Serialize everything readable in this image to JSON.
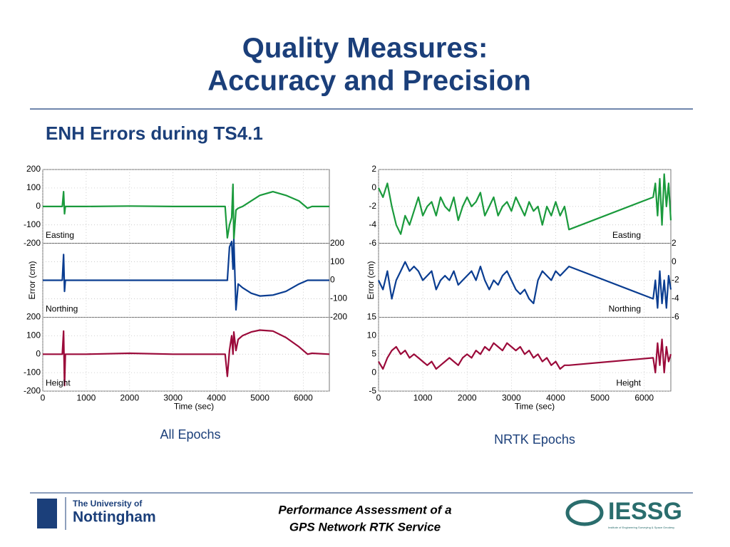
{
  "slide": {
    "title_lines": [
      "Quality Measures:",
      "Accuracy and Precision"
    ],
    "subtitle": "ENH Errors during TS4.1",
    "captions": [
      "All Epochs",
      "NRTK Epochs"
    ],
    "footer_lines": [
      "Performance Assessment of a",
      "GPS Network RTK Service"
    ],
    "logo_left": [
      "The University of",
      "Nottingham"
    ],
    "logo_right": [
      "IESSG",
      "Institute of Engineering Surveying & Space Geodesy"
    ]
  },
  "chart_data": [
    {
      "type": "line",
      "label": "Easting",
      "color": "#1a9a3c",
      "grid": true,
      "yaxis_side": "left",
      "x": [
        0,
        450,
        480,
        500,
        520,
        1000,
        2000,
        3000,
        3500,
        4000,
        4200,
        4250,
        4300,
        4350,
        4380,
        4400,
        4450,
        4500,
        4600,
        4800,
        5000,
        5300,
        5600,
        5900,
        6100,
        6200,
        6600
      ],
      "values": [
        0,
        0,
        80,
        -40,
        0,
        0,
        2,
        0,
        0,
        0,
        0,
        -170,
        -100,
        -60,
        120,
        -180,
        -20,
        -10,
        0,
        30,
        60,
        80,
        60,
        30,
        -10,
        0,
        0
      ],
      "xlim": [
        0,
        6600
      ],
      "xticks": [
        0,
        1000,
        2000,
        3000,
        4000,
        5000,
        6000
      ],
      "ylim": [
        -200,
        200
      ],
      "yticks": [
        -200,
        -100,
        0,
        100,
        200
      ]
    },
    {
      "type": "line",
      "label": "Northing",
      "color": "#0a3d91",
      "grid": true,
      "yaxis_side": "right",
      "ylabel": "Error (cm)",
      "x": [
        0,
        450,
        480,
        500,
        520,
        1000,
        2000,
        3000,
        3500,
        4000,
        4200,
        4250,
        4300,
        4350,
        4380,
        4400,
        4450,
        4500,
        4600,
        4800,
        5000,
        5300,
        5600,
        5900,
        6100,
        6200,
        6600
      ],
      "values": [
        0,
        0,
        140,
        -60,
        0,
        0,
        0,
        0,
        0,
        0,
        0,
        0,
        180,
        210,
        60,
        220,
        -160,
        -20,
        -40,
        -70,
        -85,
        -80,
        -60,
        -20,
        0,
        0,
        0
      ],
      "xlim": [
        0,
        6600
      ],
      "xticks": [
        0,
        1000,
        2000,
        3000,
        4000,
        5000,
        6000
      ],
      "ylim": [
        -200,
        200
      ],
      "yticks": [
        -200,
        -100,
        0,
        100,
        200
      ]
    },
    {
      "type": "line",
      "label": "Height",
      "color": "#9b0a3a",
      "grid": true,
      "yaxis_side": "left",
      "xlabel": "Time (sec)",
      "x": [
        0,
        450,
        480,
        500,
        520,
        1000,
        2000,
        3000,
        3500,
        4000,
        4200,
        4250,
        4300,
        4350,
        4380,
        4400,
        4450,
        4500,
        4600,
        4800,
        5000,
        5300,
        5600,
        5900,
        6100,
        6200,
        6600
      ],
      "values": [
        0,
        0,
        125,
        -170,
        0,
        0,
        5,
        0,
        0,
        0,
        0,
        -120,
        20,
        100,
        0,
        120,
        20,
        80,
        100,
        120,
        130,
        125,
        90,
        40,
        0,
        5,
        0
      ],
      "xlim": [
        0,
        6600
      ],
      "xticks": [
        0,
        1000,
        2000,
        3000,
        4000,
        5000,
        6000
      ],
      "ylim": [
        -200,
        200
      ],
      "yticks": [
        -200,
        -100,
        0,
        100,
        200
      ]
    },
    {
      "type": "line",
      "label": "Easting",
      "color": "#1a9a3c",
      "grid": true,
      "yaxis_side": "left",
      "x": [
        0,
        100,
        200,
        300,
        400,
        500,
        600,
        700,
        800,
        900,
        1000,
        1100,
        1200,
        1300,
        1400,
        1500,
        1600,
        1700,
        1800,
        1900,
        2000,
        2100,
        2200,
        2300,
        2400,
        2500,
        2600,
        2700,
        2800,
        2900,
        3000,
        3100,
        3200,
        3300,
        3400,
        3500,
        3600,
        3700,
        3800,
        3900,
        4000,
        4100,
        4200,
        4300,
        6200,
        6250,
        6300,
        6350,
        6400,
        6450,
        6500,
        6550,
        6600
      ],
      "values": [
        0,
        -1,
        0.5,
        -2,
        -4,
        -5,
        -3,
        -4,
        -2.5,
        -1,
        -3,
        -2,
        -1.5,
        -3,
        -1,
        -2,
        -2.5,
        -1,
        -3.5,
        -2,
        -1,
        -2,
        -1.5,
        -0.5,
        -3,
        -2,
        -1,
        -3,
        -2,
        -1.5,
        -2.5,
        -1,
        -2,
        -3,
        -1.5,
        -2.5,
        -2,
        -4,
        -2,
        -3,
        -1.5,
        -3,
        -2,
        -4.5,
        -1,
        0.5,
        -3,
        1,
        -4,
        1.5,
        -2,
        0.5,
        -3.5
      ],
      "xlim": [
        0,
        6600
      ],
      "xticks": [
        0,
        1000,
        2000,
        3000,
        4000,
        5000,
        6000
      ],
      "ylim": [
        -6,
        2
      ],
      "yticks": [
        -6,
        -4,
        -2,
        0,
        2
      ]
    },
    {
      "type": "line",
      "label": "Northing",
      "color": "#0a3d91",
      "grid": true,
      "yaxis_side": "right",
      "ylabel": "Error (cm)",
      "x": [
        0,
        100,
        200,
        300,
        400,
        500,
        600,
        700,
        800,
        900,
        1000,
        1100,
        1200,
        1300,
        1400,
        1500,
        1600,
        1700,
        1800,
        1900,
        2000,
        2100,
        2200,
        2300,
        2400,
        2500,
        2600,
        2700,
        2800,
        2900,
        3000,
        3100,
        3200,
        3300,
        3400,
        3500,
        3600,
        3700,
        3800,
        3900,
        4000,
        4100,
        4200,
        4300,
        6200,
        6250,
        6300,
        6350,
        6400,
        6450,
        6500,
        6550,
        6600
      ],
      "values": [
        -2,
        -3,
        -1,
        -4,
        -2,
        -1,
        0,
        -1,
        -0.5,
        -1,
        -2,
        -1.5,
        -1,
        -3,
        -2,
        -1.5,
        -2,
        -1,
        -2.5,
        -2,
        -1.5,
        -1,
        -2,
        -0.5,
        -2,
        -3,
        -2,
        -2.5,
        -1.5,
        -1,
        -2,
        -3,
        -3.5,
        -3,
        -4,
        -4.5,
        -2,
        -1,
        -1.5,
        -2,
        -1,
        -1.5,
        -1,
        -0.5,
        -4,
        -2,
        -5,
        -1,
        -4.5,
        -2,
        -5,
        -1.5,
        -3
      ],
      "xlim": [
        0,
        6600
      ],
      "xticks": [
        0,
        1000,
        2000,
        3000,
        4000,
        5000,
        6000
      ],
      "ylim": [
        -6,
        2
      ],
      "yticks": [
        -6,
        -4,
        -2,
        0,
        2
      ]
    },
    {
      "type": "line",
      "label": "Height",
      "color": "#9b0a3a",
      "grid": true,
      "yaxis_side": "left",
      "xlabel": "Time (sec)",
      "x": [
        0,
        100,
        200,
        300,
        400,
        500,
        600,
        700,
        800,
        900,
        1000,
        1100,
        1200,
        1300,
        1400,
        1500,
        1600,
        1700,
        1800,
        1900,
        2000,
        2100,
        2200,
        2300,
        2400,
        2500,
        2600,
        2700,
        2800,
        2900,
        3000,
        3100,
        3200,
        3300,
        3400,
        3500,
        3600,
        3700,
        3800,
        3900,
        4000,
        4100,
        4200,
        4300,
        6200,
        6250,
        6300,
        6350,
        6400,
        6450,
        6500,
        6550,
        6600
      ],
      "values": [
        3,
        1,
        4,
        6,
        7,
        5,
        6,
        4,
        5,
        4,
        3,
        2,
        3,
        1,
        2,
        3,
        4,
        3,
        2,
        4,
        5,
        4,
        6,
        5,
        7,
        6,
        8,
        7,
        6,
        8,
        7,
        6,
        7,
        5,
        6,
        4,
        5,
        3,
        4,
        2,
        3,
        1,
        2,
        2,
        4,
        0,
        8,
        2,
        9,
        0,
        7,
        3,
        5
      ],
      "xlim": [
        0,
        6600
      ],
      "xticks": [
        0,
        1000,
        2000,
        3000,
        4000,
        5000,
        6000
      ],
      "ylim": [
        -5,
        15
      ],
      "yticks": [
        -5,
        0,
        5,
        10,
        15
      ]
    }
  ]
}
